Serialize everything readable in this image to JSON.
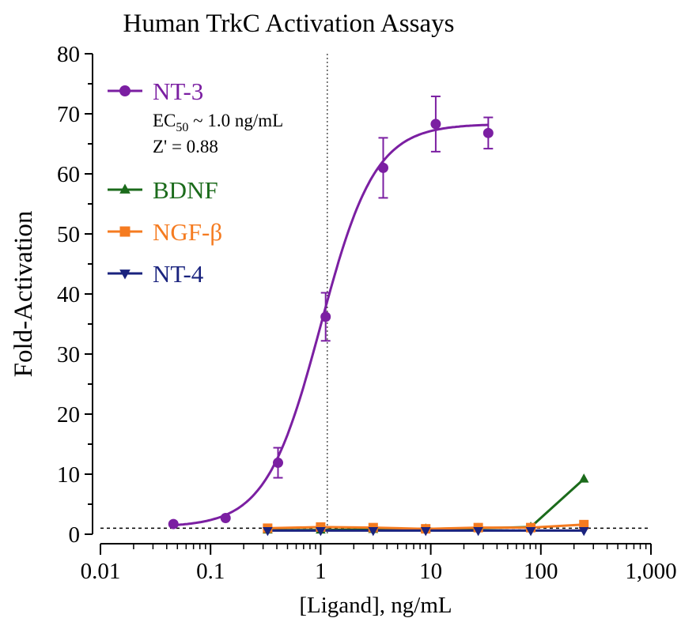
{
  "chart_data": {
    "type": "scatter",
    "title": "Human TrkC Activation Assays",
    "xlabel": "[Ligand], ng/mL",
    "ylabel": "Fold-Activation",
    "xscale": "log",
    "xlim": [
      0.01,
      1000
    ],
    "ylim": [
      0,
      80
    ],
    "x_ticks": [
      0.01,
      0.1,
      1,
      10,
      100,
      1000
    ],
    "x_tick_labels": [
      "0.01",
      "0.1",
      "1",
      "10",
      "100",
      "1,000"
    ],
    "y_ticks": [
      0,
      10,
      20,
      30,
      40,
      50,
      60,
      70,
      80
    ],
    "y_tick_labels": [
      "0",
      "10",
      "20",
      "30",
      "40",
      "50",
      "60",
      "70",
      "80"
    ],
    "grid": false,
    "legend_position": "top-left",
    "baseline_y": 1,
    "vertical_line_x": 1.15,
    "annotations": {
      "ec50_prefix": "EC",
      "ec50_sub": "50",
      "ec50_suffix": " ~ 1.0 ng/mL",
      "zprime": "Z' = 0.88"
    },
    "series": [
      {
        "name": "NT-3",
        "color": "#7B1FA2",
        "marker": "circle",
        "x": [
          0.046,
          0.137,
          0.41,
          1.11,
          3.7,
          11.1,
          33.3
        ],
        "y": [
          1.7,
          2.7,
          11.9,
          36.2,
          61.0,
          68.3,
          66.8
        ],
        "err": [
          0,
          0,
          2.5,
          4.0,
          5.0,
          4.6,
          2.6
        ],
        "fit": {
          "bottom": 1.2,
          "top": 68.3,
          "ec50": 1.0,
          "hill": 1.75
        }
      },
      {
        "name": "BDNF",
        "color": "#1B6B1B",
        "marker": "triangle-up",
        "x": [
          0.33,
          1.0,
          3.0,
          9.0,
          27.0,
          81.0,
          246.0
        ],
        "y": [
          0.7,
          0.7,
          0.8,
          0.9,
          1.0,
          1.2,
          9.2
        ]
      },
      {
        "name": "NGF-β",
        "color": "#F57B20",
        "marker": "square",
        "x": [
          0.33,
          1.0,
          3.0,
          9.0,
          27.0,
          81.0,
          246.0
        ],
        "y": [
          1.0,
          1.2,
          1.1,
          0.9,
          1.1,
          1.1,
          1.6
        ]
      },
      {
        "name": "NT-4",
        "color": "#1A237E",
        "marker": "triangle-down",
        "x": [
          0.33,
          1.0,
          3.0,
          9.0,
          27.0,
          81.0,
          246.0
        ],
        "y": [
          0.6,
          0.6,
          0.6,
          0.6,
          0.6,
          0.6,
          0.6
        ]
      }
    ]
  }
}
